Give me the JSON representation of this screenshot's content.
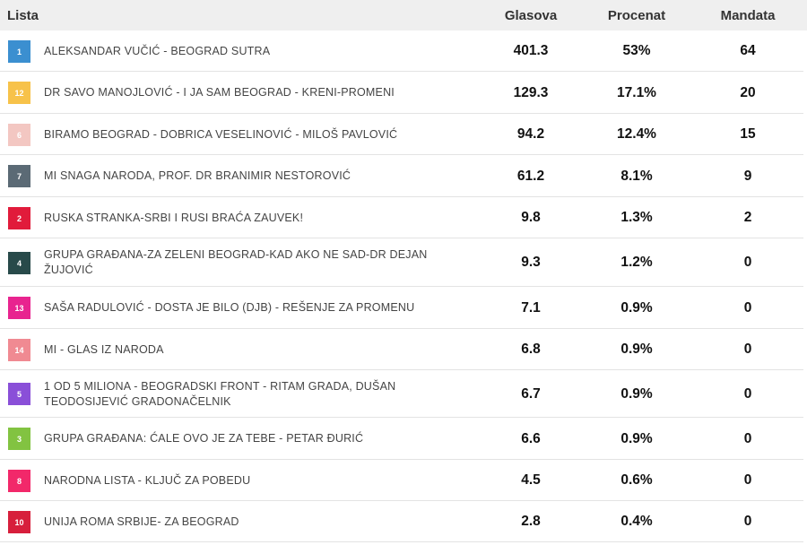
{
  "header": {
    "lista": "Lista",
    "glasova": "Glasova",
    "procenat": "Procenat",
    "mandata": "Mandata"
  },
  "rows": [
    {
      "num": "1",
      "color": "#3b8fd0",
      "name": "ALEKSANDAR VUČIĆ - BEOGRAD SUTRA",
      "glasova": "401.3",
      "procenat": "53%",
      "mandata": "64"
    },
    {
      "num": "12",
      "color": "#f7c24a",
      "name": "DR SAVO MANOJLOVIĆ - I JA SAM BEOGRAD - KRENI-PROMENI",
      "glasova": "129.3",
      "procenat": "17.1%",
      "mandata": "20"
    },
    {
      "num": "6",
      "color": "#f3c7c2",
      "name": "BIRAMO BEOGRAD - DOBRICA VESELINOVIĆ - MILOŠ PAVLOVIĆ",
      "glasova": "94.2",
      "procenat": "12.4%",
      "mandata": "15"
    },
    {
      "num": "7",
      "color": "#5b6a75",
      "name": "MI SNAGA NARODA, PROF. DR BRANIMIR NESTOROVIĆ",
      "glasova": "61.2",
      "procenat": "8.1%",
      "mandata": "9"
    },
    {
      "num": "2",
      "color": "#e11b3b",
      "name": "RUSKA STRANKA-SRBI I RUSI BRAĆA ZAUVEK!",
      "glasova": "9.8",
      "procenat": "1.3%",
      "mandata": "2"
    },
    {
      "num": "4",
      "color": "#284a4a",
      "name": "GRUPA GRAĐANA-ZA ZELENI BEOGRAD-KAD AKO NE SAD-DR DEJAN ŽUJOVIĆ",
      "glasova": "9.3",
      "procenat": "1.2%",
      "mandata": "0"
    },
    {
      "num": "13",
      "color": "#e8248f",
      "name": "SAŠA RADULOVIĆ - DOSTA JE BILO (DJB) - REŠENJE ZA PROMENU",
      "glasova": "7.1",
      "procenat": "0.9%",
      "mandata": "0"
    },
    {
      "num": "14",
      "color": "#f08a92",
      "name": "MI - GLAS IZ NARODA",
      "glasova": "6.8",
      "procenat": "0.9%",
      "mandata": "0"
    },
    {
      "num": "5",
      "color": "#8a4fd8",
      "name": "1 OD 5 MILIONA - BEOGRADSKI FRONT - RITAM GRADA, DUŠAN TEODOSIJEVIĆ GRADONAČELNIK",
      "glasova": "6.7",
      "procenat": "0.9%",
      "mandata": "0"
    },
    {
      "num": "3",
      "color": "#82c341",
      "name": "GRUPA GRAĐANA: ĆALE OVO JE ZA TEBE - PETAR ĐURIĆ",
      "glasova": "6.6",
      "procenat": "0.9%",
      "mandata": "0"
    },
    {
      "num": "8",
      "color": "#f2286a",
      "name": "NARODNA LISTA - KLJUČ ZA POBEDU",
      "glasova": "4.5",
      "procenat": "0.6%",
      "mandata": "0"
    },
    {
      "num": "10",
      "color": "#d71f3c",
      "name": "UNIJA ROMA SRBIJE- ZA BEOGRAD",
      "glasova": "2.8",
      "procenat": "0.4%",
      "mandata": "0"
    }
  ]
}
